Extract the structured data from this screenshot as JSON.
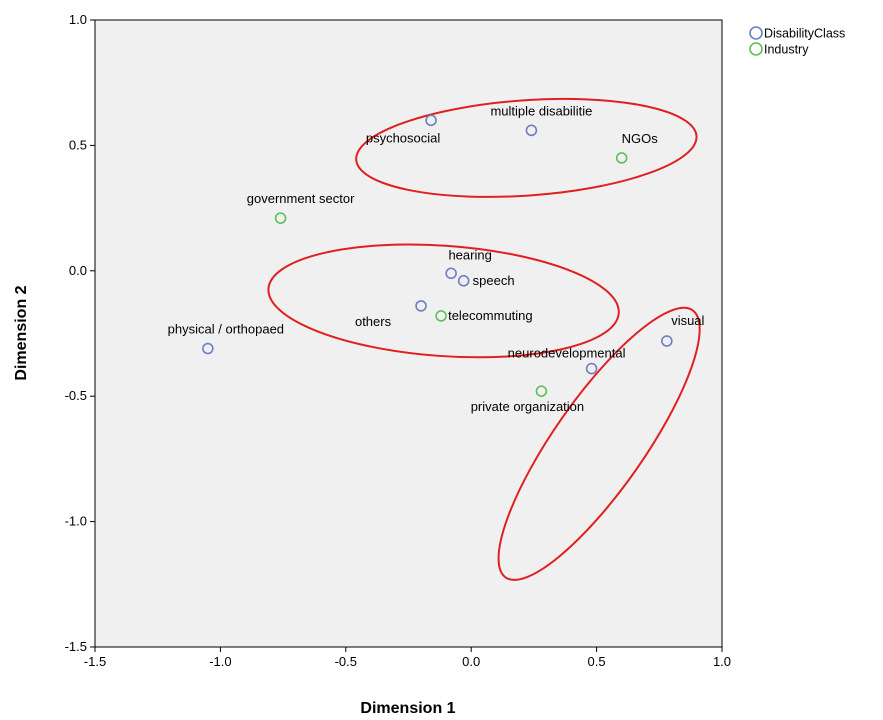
{
  "chart_data": {
    "type": "scatter",
    "title": "",
    "xlabel": "Dimension 1",
    "ylabel": "Dimension 2",
    "xlim": [
      -1.5,
      1.0
    ],
    "ylim": [
      -1.5,
      1.0
    ],
    "xticks": [
      -1.5,
      -1.0,
      -0.5,
      0.0,
      0.5,
      1.0
    ],
    "yticks": [
      -1.5,
      -1.0,
      -0.5,
      0.0,
      0.5,
      1.0
    ],
    "xtick_labels": [
      "-1.5",
      "-1.0",
      "-0.5",
      "0.0",
      "0.5",
      "1.0"
    ],
    "ytick_labels": [
      "-1.5",
      "-1.0",
      "-0.5",
      "0.0",
      "0.5",
      "1.0"
    ],
    "grid": false,
    "legend_position": "top-right",
    "series": [
      {
        "name": "DisabilityClass",
        "color": "#6f7fc4",
        "points": [
          {
            "label": "psychosocial",
            "x": -0.16,
            "y": 0.6
          },
          {
            "label": "multiple disabilitie",
            "x": 0.24,
            "y": 0.56
          },
          {
            "label": "hearing",
            "x": -0.08,
            "y": -0.01
          },
          {
            "label": "speech",
            "x": -0.03,
            "y": -0.04
          },
          {
            "label": "others",
            "x": -0.2,
            "y": -0.14
          },
          {
            "label": "physical / orthopaed",
            "x": -1.05,
            "y": -0.31
          },
          {
            "label": "visual",
            "x": 0.78,
            "y": -0.28
          },
          {
            "label": "neurodevelopmental",
            "x": 0.48,
            "y": -0.39
          }
        ]
      },
      {
        "name": "Industry",
        "color": "#5cc05c",
        "points": [
          {
            "label": "NGOs",
            "x": 0.6,
            "y": 0.45
          },
          {
            "label": "government sector",
            "x": -0.76,
            "y": 0.21
          },
          {
            "label": "telecommuting",
            "x": -0.12,
            "y": -0.18
          },
          {
            "label": "private organization",
            "x": 0.28,
            "y": -0.48
          }
        ]
      }
    ],
    "annotations": [
      {
        "type": "ellipse",
        "color": "#e02020",
        "cx": 0.22,
        "cy": 0.49,
        "rx": 0.68,
        "ry": 0.19,
        "angle": -4
      },
      {
        "type": "ellipse",
        "color": "#e02020",
        "cx": -0.11,
        "cy": -0.12,
        "rx": 0.7,
        "ry": 0.22,
        "angle": 4
      },
      {
        "type": "ellipse",
        "color": "#e02020",
        "cx": 0.51,
        "cy": -0.69,
        "rx": 0.65,
        "ry": 0.18,
        "angle": -55
      }
    ]
  }
}
